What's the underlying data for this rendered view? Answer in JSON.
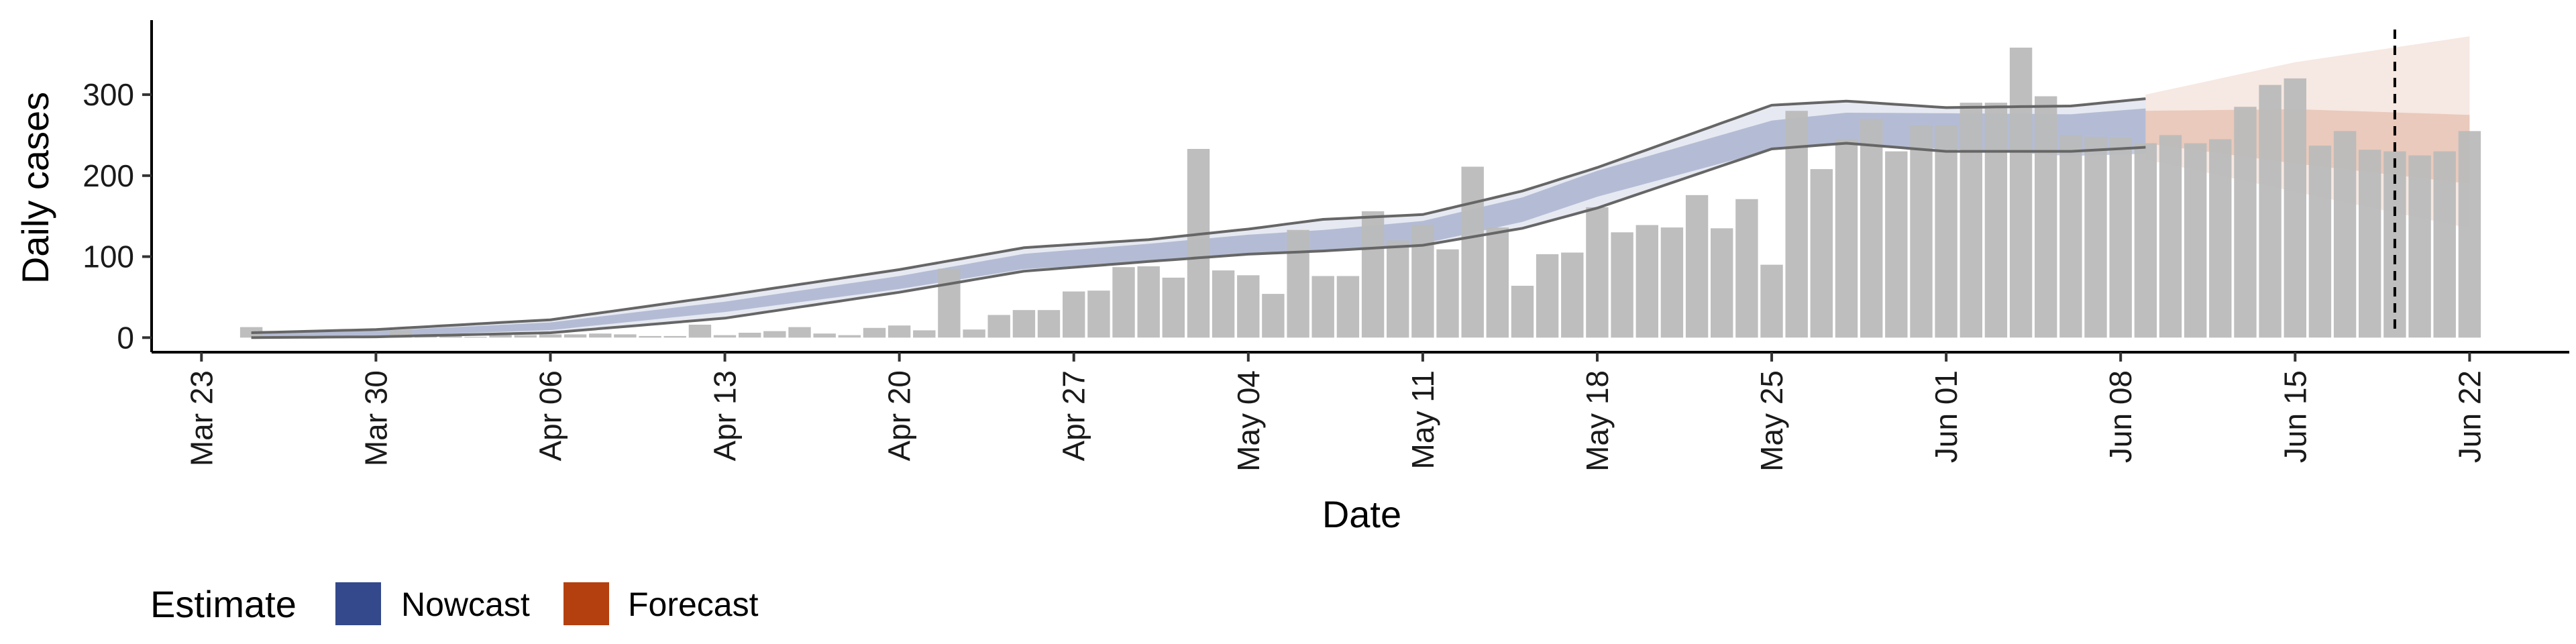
{
  "chart_data": {
    "type": "bar",
    "xlabel": "Date",
    "ylabel": "Daily cases",
    "y_ticks": [
      0,
      100,
      200,
      300
    ],
    "ylim": [
      -18,
      392
    ],
    "x_ticks": [
      {
        "label": "Mar 23",
        "day": 0
      },
      {
        "label": "Mar 30",
        "day": 7
      },
      {
        "label": "Apr 06",
        "day": 14
      },
      {
        "label": "Apr 13",
        "day": 21
      },
      {
        "label": "Apr 20",
        "day": 28
      },
      {
        "label": "Apr 27",
        "day": 35
      },
      {
        "label": "May 04",
        "day": 42
      },
      {
        "label": "May 11",
        "day": 49
      },
      {
        "label": "May 18",
        "day": 56
      },
      {
        "label": "May 25",
        "day": 63
      },
      {
        "label": "Jun 01",
        "day": 70
      },
      {
        "label": "Jun 08",
        "day": 77
      },
      {
        "label": "Jun 15",
        "day": 84
      },
      {
        "label": "Jun 22",
        "day": 91
      }
    ],
    "xlim": [
      -2,
      95
    ],
    "reported_cases": {
      "first_day": 2,
      "color": "#bbbbbb",
      "values": [
        13,
        2,
        0,
        2,
        2,
        3,
        9,
        3,
        2,
        1,
        3,
        3,
        4,
        4,
        5,
        4,
        2,
        2,
        16,
        3,
        6,
        8,
        13,
        5,
        3,
        12,
        15,
        9,
        85,
        10,
        28,
        34,
        34,
        57,
        58,
        87,
        88,
        74,
        233,
        83,
        77,
        54,
        133,
        76,
        76,
        156,
        120,
        139,
        109,
        211,
        136,
        64,
        103,
        105,
        161,
        130,
        139,
        136,
        176,
        135,
        171,
        90,
        280,
        208,
        245,
        270,
        230,
        262,
        262,
        290,
        290,
        358,
        298,
        250,
        248,
        247,
        240,
        250,
        240,
        245,
        285,
        312,
        320,
        237,
        255,
        232,
        230,
        225,
        230,
        255
      ]
    },
    "nowcast": {
      "label": "Nowcast",
      "color": "#34498c",
      "first_day": 2,
      "last_day": 78,
      "median_knots": [
        [
          2,
          3
        ],
        [
          7,
          5
        ],
        [
          14,
          14
        ],
        [
          21,
          38
        ],
        [
          28,
          68
        ],
        [
          33,
          94
        ],
        [
          38,
          105
        ],
        [
          42,
          115
        ],
        [
          45,
          120
        ],
        [
          49,
          130
        ],
        [
          53,
          158
        ],
        [
          56,
          190
        ],
        [
          63,
          250
        ],
        [
          66,
          258
        ],
        [
          70,
          255
        ],
        [
          75,
          250
        ],
        [
          78,
          255
        ]
      ],
      "inner_width_knots": [
        [
          2,
          2
        ],
        [
          28,
          8
        ],
        [
          49,
          14
        ],
        [
          63,
          18
        ],
        [
          70,
          22
        ],
        [
          78,
          28
        ]
      ],
      "outer_lower_knots": [
        [
          2,
          0
        ],
        [
          7,
          1
        ],
        [
          14,
          6
        ],
        [
          21,
          24
        ],
        [
          28,
          56
        ],
        [
          33,
          82
        ],
        [
          38,
          94
        ],
        [
          42,
          103
        ],
        [
          45,
          107
        ],
        [
          49,
          114
        ],
        [
          53,
          135
        ],
        [
          56,
          160
        ],
        [
          63,
          233
        ],
        [
          66,
          240
        ],
        [
          70,
          230
        ],
        [
          75,
          230
        ],
        [
          78,
          235
        ]
      ],
      "outer_upper_knots": [
        [
          2,
          6
        ],
        [
          7,
          10
        ],
        [
          14,
          22
        ],
        [
          21,
          52
        ],
        [
          28,
          84
        ],
        [
          33,
          111
        ],
        [
          38,
          121
        ],
        [
          42,
          134
        ],
        [
          45,
          146
        ],
        [
          49,
          152
        ],
        [
          53,
          181
        ],
        [
          56,
          210
        ],
        [
          63,
          287
        ],
        [
          66,
          292
        ],
        [
          70,
          284
        ],
        [
          75,
          286
        ],
        [
          78,
          295
        ]
      ]
    },
    "forecast": {
      "label": "Forecast",
      "color": "#b5400f",
      "first_day": 78,
      "last_day": 91,
      "median_knots": [
        [
          78,
          245
        ],
        [
          84,
          242
        ],
        [
          91,
          240
        ]
      ],
      "inner_lower_knots": [
        [
          78,
          240
        ],
        [
          84,
          215
        ],
        [
          91,
          190
        ]
      ],
      "inner_upper_knots": [
        [
          78,
          280
        ],
        [
          84,
          282
        ],
        [
          91,
          275
        ]
      ],
      "outer_lower_knots": [
        [
          78,
          220
        ],
        [
          84,
          180
        ],
        [
          91,
          135
        ]
      ],
      "outer_upper_knots": [
        [
          78,
          300
        ],
        [
          84,
          340
        ],
        [
          91,
          372
        ]
      ]
    },
    "vline_day": 88,
    "legend": {
      "title": "Estimate",
      "placement": "bottom-left",
      "entries": [
        {
          "label": "Nowcast",
          "color": "#34498c"
        },
        {
          "label": "Forecast",
          "color": "#b5400f"
        }
      ]
    }
  }
}
